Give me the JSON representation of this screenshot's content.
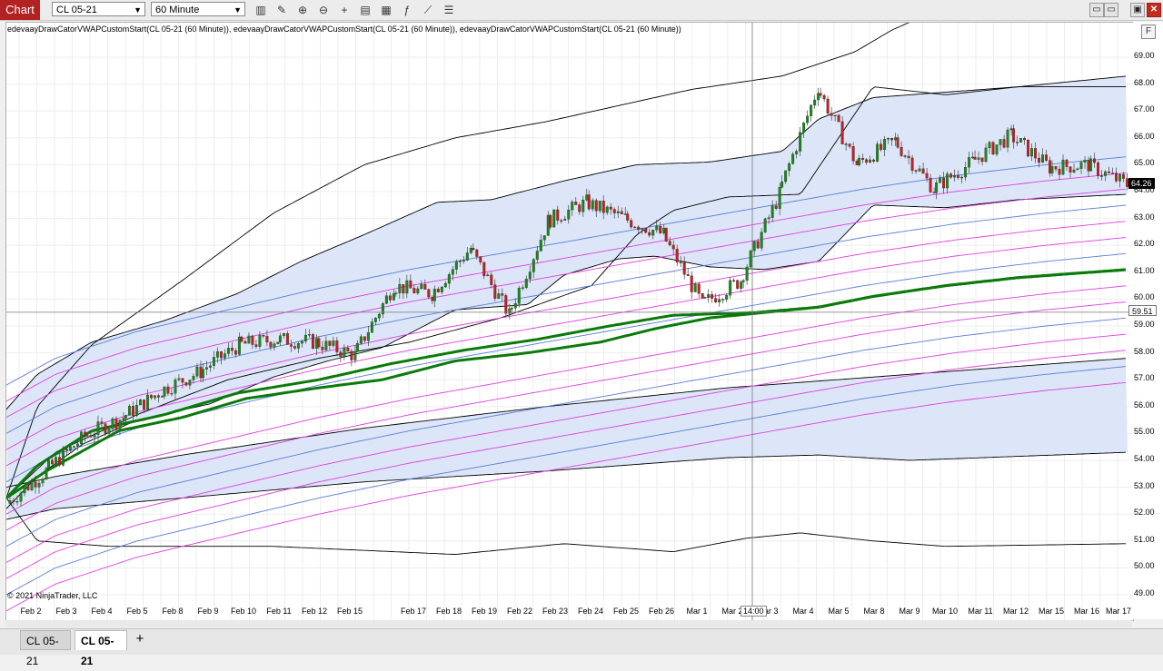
{
  "toolbar": {
    "chart_label": "Chart",
    "instrument": "CL 05-21",
    "interval": "60 Minute",
    "tools": [
      {
        "name": "bars-type-icon",
        "glyph": "▥"
      },
      {
        "name": "pencil-icon",
        "glyph": "✎"
      },
      {
        "name": "zoom-in-icon",
        "glyph": "⊕"
      },
      {
        "name": "zoom-out-icon",
        "glyph": "⊖"
      },
      {
        "name": "crosshair-icon",
        "glyph": "+"
      },
      {
        "name": "data-box-icon",
        "glyph": "▤"
      },
      {
        "name": "properties-icon",
        "glyph": "▦"
      },
      {
        "name": "indicators-icon",
        "glyph": "ƒ"
      },
      {
        "name": "strategies-icon",
        "glyph": "⟋"
      },
      {
        "name": "templates-icon",
        "glyph": "☰"
      }
    ],
    "window_buttons": [
      {
        "name": "restore-icon",
        "glyph": "▭"
      },
      {
        "name": "tile-icon",
        "glyph": "▭"
      },
      {
        "name": "maximize-icon",
        "glyph": "▣"
      },
      {
        "name": "close-icon",
        "glyph": "✕"
      }
    ]
  },
  "chart": {
    "indicator_title": "edevaayDrawCatorVWAPCustomStart(CL 05-21 (60 Minute)), edevaayDrawCatorVWAPCustomStart(CL 05-21 (60 Minute)), edevaayDrawCatorVWAPCustomStart(CL 05-21 (60 Minute))",
    "copyright": "© 2021 NinjaTrader, LLC",
    "f_button": "F",
    "last_price": "64.26",
    "crosshair_price": "59.51",
    "crosshair_time": "14:00",
    "colors": {
      "band_fill": "#dce6f8",
      "band_line": "#000000",
      "sd_line": "#e040e0",
      "mid_line": "#5b7fd6",
      "vwap": "#0b7a0b",
      "bull": "#1a8a1a",
      "bear": "#c81e1e",
      "last_price_bg": "#000000"
    }
  },
  "chart_data": {
    "type": "line",
    "ylim": [
      48.8,
      70.6
    ],
    "yticks": [
      "69.00",
      "68.00",
      "67.00",
      "66.00",
      "65.00",
      "64.00",
      "63.00",
      "62.00",
      "61.00",
      "60.00",
      "59.00",
      "58.00",
      "57.00",
      "56.00",
      "55.00",
      "54.00",
      "53.00",
      "52.00",
      "51.00",
      "50.00",
      "49.00"
    ],
    "xtick_labels": [
      "Feb 2",
      "Feb 3",
      "Feb 4",
      "Feb 5",
      "Feb 8",
      "Feb 9",
      "Feb 10",
      "Feb 11",
      "Feb 12",
      "Feb 15",
      "Feb 17",
      "Feb 18",
      "Feb 19",
      "Feb 22",
      "Feb 23",
      "Feb 24",
      "Feb 25",
      "Feb 26",
      "Mar 1",
      "Mar 2",
      "Mar 3",
      "Mar 4",
      "Mar 5",
      "Mar 8",
      "Mar 9",
      "Mar 10",
      "Mar 11",
      "Mar 12",
      "Mar 15",
      "Mar 16",
      "Mar 17"
    ],
    "price_close": [
      52.4,
      53.6,
      54.9,
      55.6,
      56.6,
      57.3,
      58.3,
      58.5,
      58.4,
      57.9,
      60.5,
      60.2,
      61.9,
      59.4,
      62.9,
      63.6,
      63.0,
      62.4,
      59.8,
      60.7,
      63.9,
      67.9,
      65.0,
      65.9,
      64.1,
      65.1,
      66.1,
      64.9,
      65.0,
      64.26
    ],
    "vwap_upper": [
      53.6,
      54.8,
      55.5,
      56.3,
      57.0,
      57.6,
      58.4,
      59.0,
      59.3,
      59.6,
      60.4,
      61.2,
      61.6,
      61.8,
      62.4,
      63.0,
      63.4,
      63.4,
      63.1,
      63.0,
      63.2,
      65.4,
      65.2,
      65.3,
      65.5,
      65.6,
      65.7,
      65.8,
      65.9,
      65.9
    ]
  },
  "tabs": [
    {
      "label": "CL 05-21",
      "active": false
    },
    {
      "label": "CL 05-21",
      "active": true
    }
  ],
  "tab_add": "+"
}
